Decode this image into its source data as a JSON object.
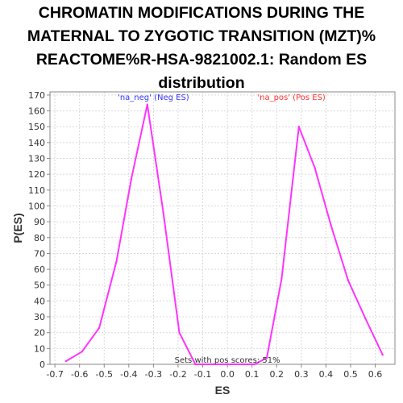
{
  "title_lines": [
    "CHROMATIN MODIFICATIONS DURING THE",
    "MATERNAL TO ZYGOTIC TRANSITION (MZT)%",
    "REACTOME%R-HSA-9821002.1: Random ES",
    "distribution"
  ],
  "colors": {
    "line": "#ff33ff",
    "neg_annotation": "#3333ff",
    "pos_annotation": "#ff3333",
    "grid": "#d9d9d9",
    "axis": "#888888"
  },
  "chart_data": {
    "type": "line",
    "title": "CHROMATIN MODIFICATIONS DURING THE MATERNAL TO ZYGOTIC TRANSITION (MZT)% REACTOME%R-HSA-9821002.1: Random ES distribution",
    "xlabel": "ES",
    "ylabel": "P(ES)",
    "xlim": [
      -0.72,
      0.68
    ],
    "ylim": [
      0,
      172
    ],
    "x_ticks": [
      "-0.7",
      "-0.6",
      "-0.5",
      "-0.4",
      "-0.3",
      "-0.2",
      "-0.1",
      "0.0",
      "0.1",
      "0.2",
      "0.3",
      "0.4",
      "0.5",
      "0.6"
    ],
    "x_tick_values": [
      -0.7,
      -0.6,
      -0.5,
      -0.4,
      -0.3,
      -0.2,
      -0.1,
      0.0,
      0.1,
      0.2,
      0.3,
      0.4,
      0.5,
      0.6
    ],
    "y_ticks": [
      "0",
      "10",
      "20",
      "30",
      "40",
      "50",
      "60",
      "70",
      "80",
      "90",
      "100",
      "110",
      "120",
      "130",
      "140",
      "150",
      "160",
      "170"
    ],
    "y_tick_values": [
      0,
      10,
      20,
      30,
      40,
      50,
      60,
      70,
      80,
      90,
      100,
      110,
      120,
      130,
      140,
      150,
      160,
      170
    ],
    "grid": true,
    "series": [
      {
        "x": [
          -0.655,
          -0.59,
          -0.52,
          -0.45,
          -0.39,
          -0.325,
          -0.26,
          -0.195,
          -0.13,
          -0.065,
          0.0,
          0.065,
          0.11,
          0.16,
          0.22,
          0.29,
          0.355,
          0.42,
          0.49,
          0.56,
          0.63
        ],
        "y": [
          2,
          8,
          23,
          65,
          117,
          164,
          96,
          20,
          0,
          0,
          0,
          0,
          0,
          4,
          54,
          150,
          124,
          88,
          53,
          29,
          6
        ]
      }
    ],
    "annotations": [
      {
        "text": "'na_neg' (Neg ES)",
        "x": -0.3,
        "y": 167,
        "color_key": "neg_annotation"
      },
      {
        "text": "'na_pos' (Pos ES)",
        "x": 0.26,
        "y": 167,
        "color_key": "pos_annotation"
      },
      {
        "text": "Sets with pos scores: 51%",
        "x": 0.0,
        "y": 1,
        "color_key": "axis_text"
      }
    ]
  }
}
